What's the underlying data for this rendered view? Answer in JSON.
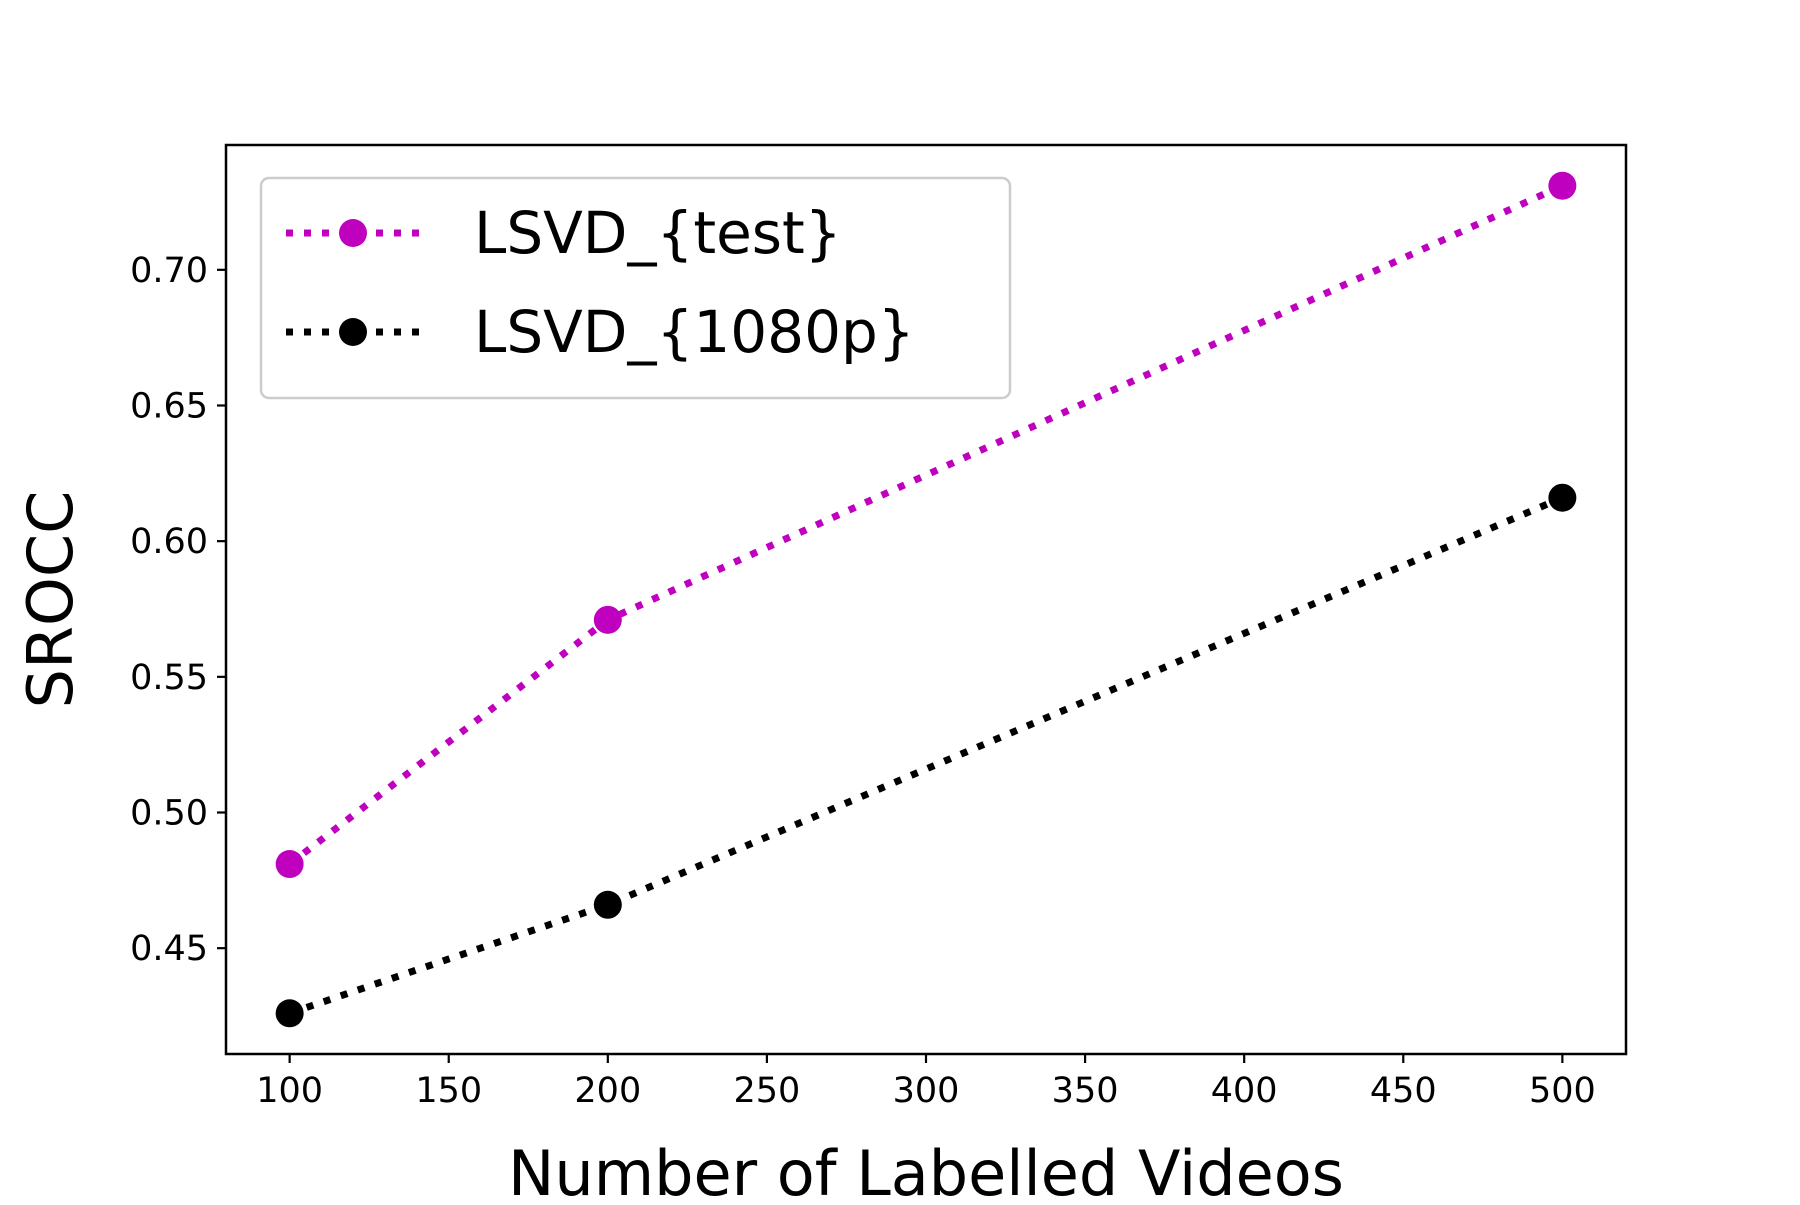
{
  "chart_data": {
    "type": "line",
    "title": "",
    "xlabel": "Number of Labelled Videos",
    "ylabel": "SROCC",
    "xlim": [
      80,
      520
    ],
    "ylim": [
      0.411,
      0.746
    ],
    "xticks": [
      100,
      150,
      200,
      250,
      300,
      350,
      400,
      450,
      500
    ],
    "xtick_labels": [
      "100",
      "150",
      "200",
      "250",
      "300",
      "350",
      "400",
      "450",
      "500"
    ],
    "yticks": [
      0.45,
      0.5,
      0.55,
      0.6,
      0.65,
      0.7
    ],
    "ytick_labels": [
      "0.45",
      "0.50",
      "0.55",
      "0.60",
      "0.65",
      "0.70"
    ],
    "grid": false,
    "legend_position": "upper-left",
    "x": [
      100,
      200,
      500
    ],
    "series": [
      {
        "name": "LSVD_{test}",
        "values": [
          0.481,
          0.571,
          0.731
        ],
        "color": "#bf00bf",
        "line_style": "dotted",
        "marker": "circle"
      },
      {
        "name": "LSVD_{1080p}",
        "values": [
          0.426,
          0.466,
          0.616
        ],
        "color": "#000000",
        "line_style": "dotted",
        "marker": "circle"
      }
    ]
  }
}
